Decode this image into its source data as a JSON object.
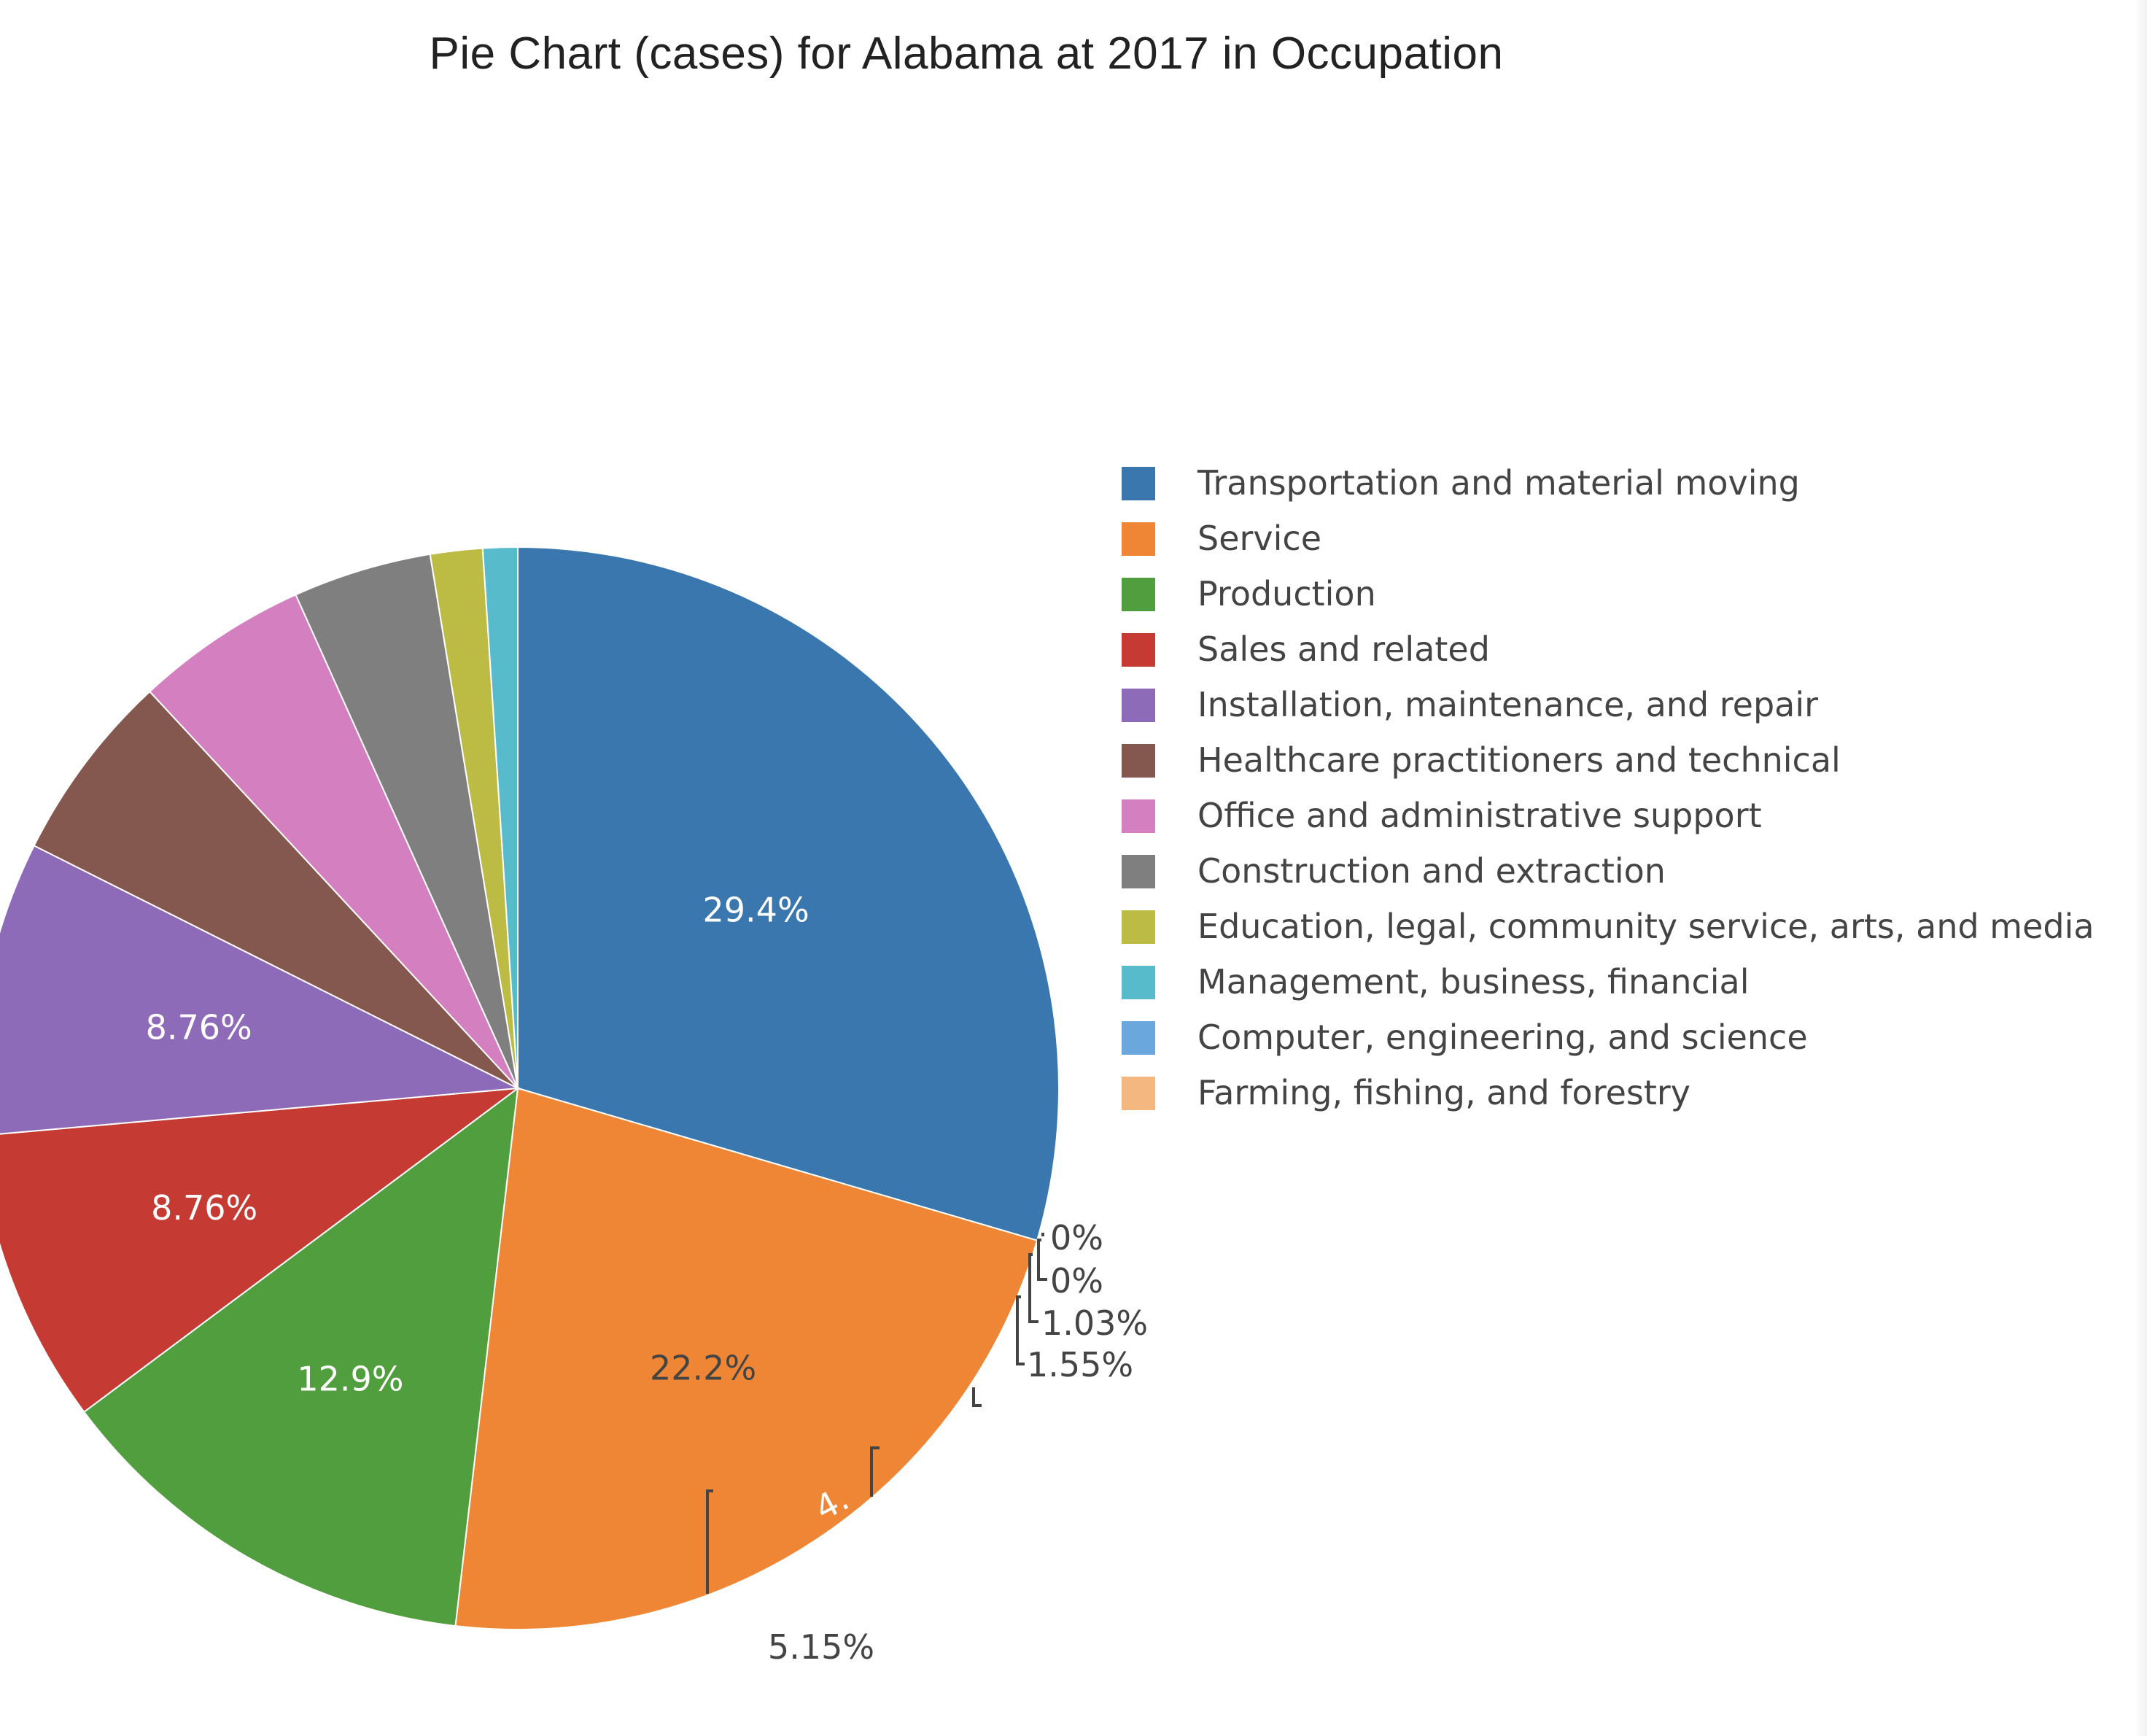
{
  "chart_data": {
    "type": "pie",
    "title": "Pie Chart (cases) for Alabama at 2017 in Occupation",
    "legend_position": "right",
    "slices": [
      {
        "label": "Transportation and material moving",
        "value": 29.4,
        "text": "29.4%",
        "color": "#3a77ae"
      },
      {
        "label": "Service",
        "value": 22.2,
        "text": "22.2%",
        "color": "#ef8636"
      },
      {
        "label": "Production",
        "value": 12.9,
        "text": "12.9%",
        "color": "#519e3e"
      },
      {
        "label": "Sales and related",
        "value": 8.76,
        "text": "8.76%",
        "color": "#c53a32"
      },
      {
        "label": "Installation, maintenance, and repair",
        "value": 8.76,
        "text": "8.76%",
        "color": "#8d6bb8"
      },
      {
        "label": "Healthcare practitioners and technical",
        "value": 5.67,
        "text": "",
        "color": "#84584e"
      },
      {
        "label": "Office and administrative support",
        "value": 5.15,
        "text": "5.15%",
        "color": "#d47fc0"
      },
      {
        "label": "Construction and extraction",
        "value": 4.12,
        "text": "4.",
        "color": "#7f7f7f"
      },
      {
        "label": "Education, legal, community service, arts, and media",
        "value": 1.55,
        "text": "1.55%",
        "color": "#bcbc45"
      },
      {
        "label": "Management, business, financial",
        "value": 1.03,
        "text": "1.03%",
        "color": "#58bbcc"
      },
      {
        "label": "Computer, engineering, and science",
        "value": 0,
        "text": "0%",
        "color": "#6aa7dc"
      },
      {
        "label": "Farming, fishing, and forestry",
        "value": 0,
        "text": "0%",
        "color": "#f4b77f"
      }
    ]
  }
}
